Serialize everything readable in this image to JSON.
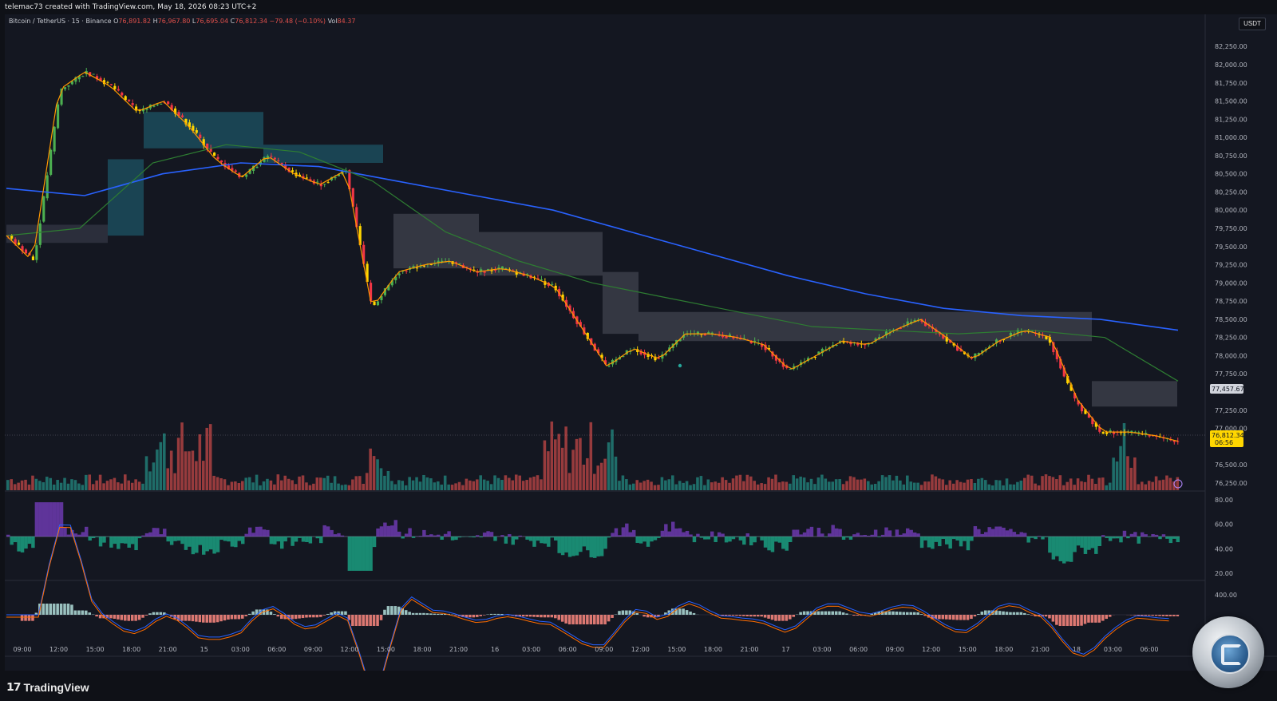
{
  "header": {
    "author_line": "telemac73 created with TradingView.com, May 18, 2026 08:23 UTC+2"
  },
  "legend": {
    "symbol": "Bitcoin / TetherUS · 15 · Binance",
    "o_label": "O",
    "o": "76,891.82",
    "h_label": "H",
    "h": "76,967.80",
    "l_label": "L",
    "l": "76,695.04",
    "c_label": "C",
    "c": "76,812.34",
    "change": "−79.48 (−0.10%)",
    "vol_label": "Vol",
    "vol": "84.37"
  },
  "currency_badge": "USDT",
  "price_axis": {
    "ticks": [
      "82,250.00",
      "82,000.00",
      "81,750.00",
      "81,500.00",
      "81,250.00",
      "81,000.00",
      "80,750.00",
      "80,500.00",
      "80,250.00",
      "80,000.00",
      "79,750.00",
      "79,500.00",
      "79,250.00",
      "79,000.00",
      "78,750.00",
      "78,500.00",
      "78,250.00",
      "78,000.00",
      "77,750.00",
      "77,250.00",
      "77,000.00",
      "76,500.00",
      "76,250.00"
    ],
    "ma_label": "77,457.67",
    "last_price": "76,812.34",
    "countdown": "06:56"
  },
  "rsi_axis": {
    "ticks": [
      "80.00",
      "60.00",
      "40.00",
      "20.00"
    ]
  },
  "macd_axis": {
    "ticks": [
      "400.00"
    ]
  },
  "time_axis": {
    "labels": [
      "09:00",
      "12:00",
      "15:00",
      "18:00",
      "21:00",
      "15",
      "03:00",
      "06:00",
      "09:00",
      "12:00",
      "15:00",
      "18:00",
      "21:00",
      "16",
      "03:00",
      "06:00",
      "09:00",
      "12:00",
      "15:00",
      "18:00",
      "21:00",
      "17",
      "03:00",
      "06:00",
      "09:00",
      "12:00",
      "15:00",
      "18:00",
      "21:00",
      "18",
      "03:00",
      "06:00"
    ]
  },
  "branding": {
    "footer_logo_text": "TradingView"
  },
  "colors": {
    "up": "#26a69a",
    "down": "#ef5350",
    "up_candle": "#4caf50",
    "down_candle": "#f23645",
    "ema_fast": "#ff9800",
    "ma_mid": "#2e7d32",
    "ma_slow": "#2962ff",
    "yellow": "#ffd600",
    "cloud_teal": "#1b4c5c",
    "cloud_gray": "#3a3d48",
    "rsi_purple": "#9c4dff",
    "rsi_green": "#1de9b6"
  },
  "chart_data": {
    "type": "candlestick",
    "title": "Bitcoin / TetherUS · 15 · Binance",
    "ylim": [
      76150,
      82450
    ],
    "key_prices": [
      79650,
      79300,
      81650,
      81900,
      81700,
      81350,
      81500,
      81150,
      80700,
      80450,
      80750,
      80500,
      80350,
      80550,
      78650,
      79150,
      79250,
      79300,
      79150,
      79200,
      79100,
      78950,
      78400,
      77850,
      78100,
      77950,
      78300,
      78300,
      78250,
      78150,
      77800,
      78000,
      78200,
      78150,
      78350,
      78500,
      78250,
      77950,
      78200,
      78350,
      78250,
      77400,
      76950,
      76950,
      76900,
      76812
    ],
    "ma_slow_path": [
      80300,
      80200,
      80500,
      80650,
      80600,
      80400,
      80200,
      80000,
      79700,
      79400,
      79100,
      78850,
      78650,
      78550,
      78500,
      78350
    ],
    "ma_mid_path": [
      79650,
      79750,
      80650,
      80900,
      80800,
      80400,
      79700,
      79300,
      79000,
      78800,
      78600,
      78400,
      78350,
      78300,
      78350,
      78250,
      77650
    ],
    "rsi_range": [
      20,
      80
    ],
    "macd_label": "400.00"
  }
}
